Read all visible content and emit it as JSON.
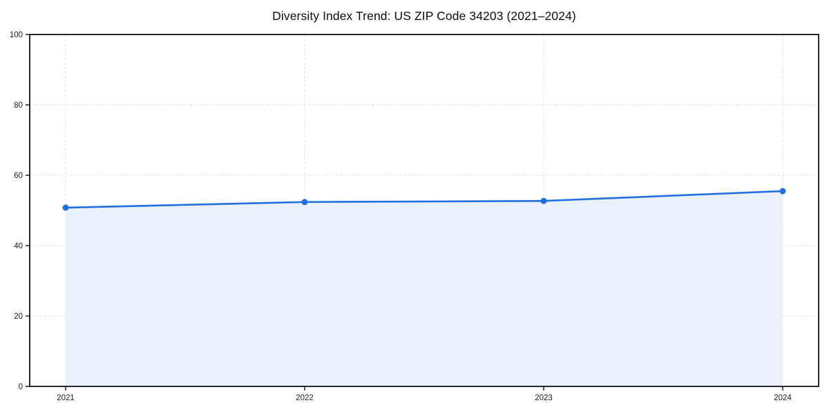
{
  "chart_data": {
    "type": "line",
    "title": "Diversity Index Trend: US ZIP Code 34203 (2021–2024)",
    "x": [
      "2021",
      "2022",
      "2023",
      "2024"
    ],
    "series": [
      {
        "name": "Diversity Index",
        "values": [
          50.8,
          52.4,
          52.7,
          55.5
        ]
      }
    ],
    "xlabel": "",
    "ylabel": "",
    "ylim": [
      0,
      100
    ],
    "yticks": [
      0,
      20,
      40,
      60,
      80,
      100
    ],
    "grid": "dashed, horizontal at each y tick and vertical at each year",
    "legend": "none",
    "area_fill": true,
    "marker": "circle",
    "colors": {
      "line": "#1f6fe0",
      "marker": "#1f6fe0",
      "fill": "#e7eefb",
      "grid": "#e2e2e2",
      "spine": "#111111",
      "tick_text": "#1c1c1c",
      "background": "#ffffff"
    }
  }
}
